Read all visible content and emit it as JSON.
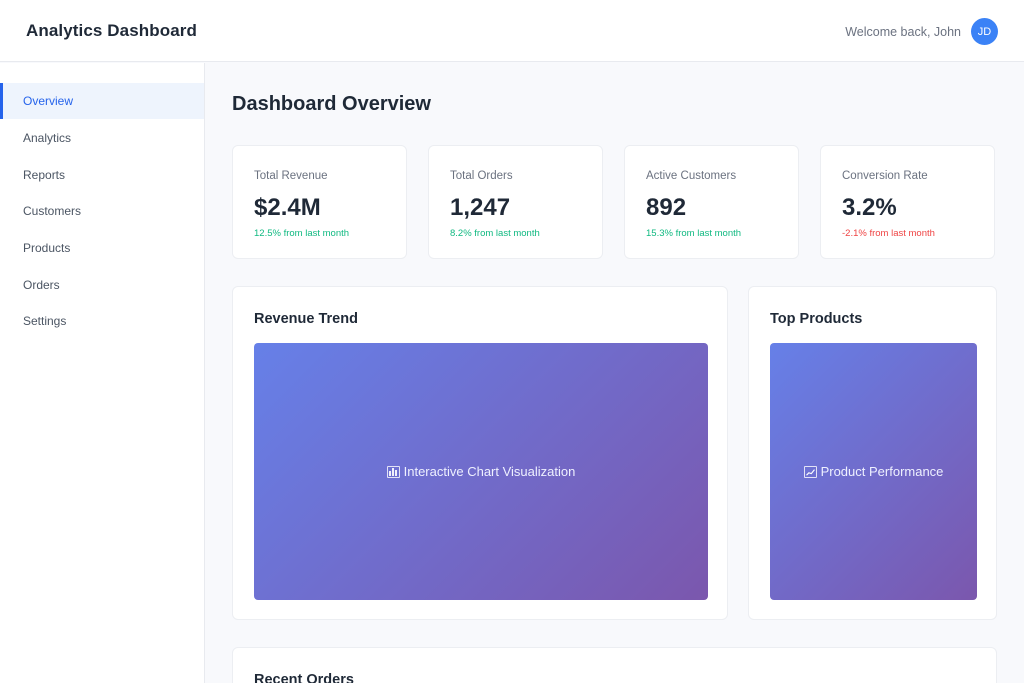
{
  "header": {
    "title": "Analytics Dashboard",
    "welcome": "Welcome back, John",
    "avatar_initials": "JD"
  },
  "sidebar": {
    "items": [
      {
        "label": "Overview",
        "active": true
      },
      {
        "label": "Analytics",
        "active": false
      },
      {
        "label": "Reports",
        "active": false
      },
      {
        "label": "Customers",
        "active": false
      },
      {
        "label": "Products",
        "active": false
      },
      {
        "label": "Orders",
        "active": false
      },
      {
        "label": "Settings",
        "active": false
      }
    ]
  },
  "main": {
    "title": "Dashboard Overview",
    "stats": [
      {
        "label": "Total Revenue",
        "value": "$2.4M",
        "change": "12.5% from last month"
      },
      {
        "label": "Total Orders",
        "value": "1,247",
        "change": "8.2% from last month"
      },
      {
        "label": "Active Customers",
        "value": "892",
        "change": "15.3% from last month"
      },
      {
        "label": "Conversion Rate",
        "value": "3.2%",
        "change": "-2.1% from last month"
      }
    ],
    "revenue_panel": {
      "title": "Revenue Trend",
      "placeholder": "Interactive Chart Visualization",
      "icon": "bar-chart-icon"
    },
    "products_panel": {
      "title": "Top Products",
      "placeholder": "Product Performance",
      "icon": "line-chart-icon"
    },
    "orders_panel": {
      "title": "Recent Orders"
    }
  },
  "colors": {
    "accent": "#2563eb",
    "positive": "#10b981",
    "negative": "#ef4444",
    "gradient_start": "#6680e8",
    "gradient_end": "#7b57ad"
  }
}
